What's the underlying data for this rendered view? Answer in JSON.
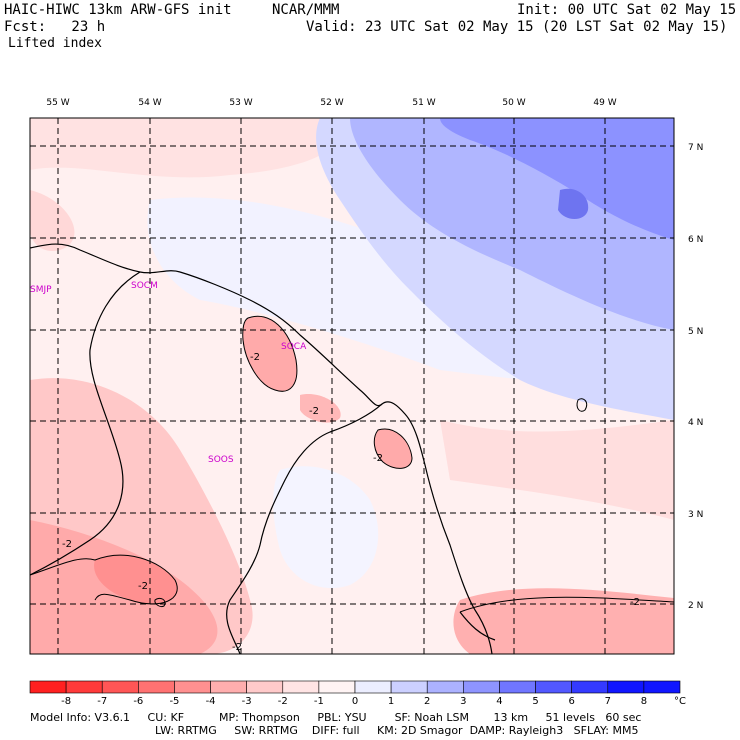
{
  "header": {
    "title": "HAIC-HIWC 13km ARW-GFS init",
    "org": "NCAR/MMM",
    "init": "Init: 00 UTC Sat 02 May 15",
    "fcst": "Fcst:   23 h",
    "valid": "Valid: 23 UTC Sat 02 May 15 (20 LST Sat 02 May 15)",
    "field": "Lifted index"
  },
  "map": {
    "lon_labels": [
      "55 W",
      "54 W",
      "53 W",
      "52 W",
      "51 W",
      "50 W",
      "49 W"
    ],
    "lat_labels": [
      "7 N",
      "6 N",
      "5 N",
      "4 N",
      "3 N",
      "2 N"
    ],
    "stations": [
      "SMJP",
      "SOCM",
      "SOCA",
      "SOOS"
    ],
    "contour_labels": [
      "-2",
      "-2",
      "-2",
      "-2",
      "-2",
      "-2",
      "-2"
    ]
  },
  "colorbar": {
    "ticks": [
      "-8",
      "-7",
      "-6",
      "-5",
      "-4",
      "-3",
      "-2",
      "-1",
      "0",
      "1",
      "2",
      "3",
      "4",
      "5",
      "6",
      "7",
      "8"
    ],
    "unit": "°C",
    "colors": [
      "#ff2020",
      "#ff3a3a",
      "#ff5656",
      "#ff7272",
      "#ff9090",
      "#ffaeae",
      "#ffcaca",
      "#ffe4e4",
      "#fff4f4",
      "#eceeff",
      "#ccd0ff",
      "#acb2ff",
      "#8e94ff",
      "#7076ff",
      "#5258ff",
      "#343aff",
      "#1016ff"
    ]
  },
  "model_info": {
    "line1": "Model Info: V3.6.1     CU: KF          MP: Thompson     PBL: YSU        SF: Noah LSM       13 km     51 levels   60 sec",
    "line2": "LW: RRTMG     SW: RRTMG    DIFF: full     KM: 2D Smagor  DAMP: Rayleigh3   SFLAY: MM5"
  }
}
